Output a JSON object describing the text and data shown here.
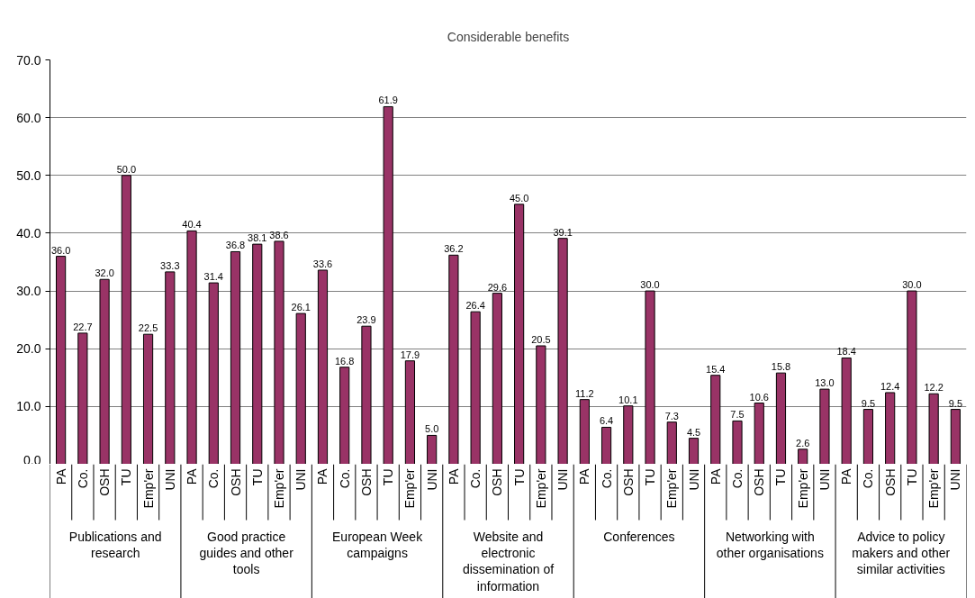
{
  "chart_data": {
    "type": "bar",
    "title": "Considerable benefits",
    "categories": [
      "Publications and research",
      "Good practice guides and other tools",
      "European Week campaigns",
      "Website and electronic dissemination of information",
      "Conferences",
      "Networking with other organisations",
      "Advice to policy makers and other similar activities"
    ],
    "series": [
      {
        "name": "PA",
        "color": "#993366",
        "values": [
          36.0,
          40.4,
          33.6,
          36.2,
          11.2,
          15.4,
          18.4
        ],
        "value_labels": [
          "36.0",
          "40.4",
          "33.6",
          "36.2",
          "11.2",
          "15.4",
          "18.4"
        ]
      },
      {
        "name": "Co.",
        "color": "#993366",
        "values": [
          22.7,
          31.4,
          16.8,
          26.4,
          6.4,
          7.5,
          9.5
        ],
        "value_labels": [
          "22.7",
          "31.4",
          "16.8",
          "26.4",
          "6.4",
          "7.5",
          "9.5"
        ]
      },
      {
        "name": "OSH",
        "color": "#993366",
        "values": [
          32.0,
          36.8,
          23.9,
          29.6,
          10.1,
          10.6,
          12.4
        ],
        "value_labels": [
          "32.0",
          "36.8",
          "23.9",
          "29.6",
          "10.1",
          "10.6",
          "12.4"
        ]
      },
      {
        "name": "TU",
        "color": "#993366",
        "values": [
          50.0,
          38.1,
          61.9,
          45.0,
          30.0,
          15.8,
          30.0
        ],
        "value_labels": [
          "50.0",
          "38.1",
          "61.9",
          "45.0",
          "30.0",
          "15.8",
          "30.0"
        ]
      },
      {
        "name": "Emp'er",
        "color": "#993366",
        "values": [
          22.5,
          38.6,
          17.9,
          20.5,
          7.3,
          2.6,
          12.2
        ],
        "value_labels": [
          "22.5",
          "38.6",
          "17.9",
          "20.5",
          "7.3",
          "2.6",
          "12.2"
        ]
      },
      {
        "name": "UNI",
        "color": "#993366",
        "values": [
          33.3,
          26.1,
          5.0,
          39.1,
          4.5,
          13.0,
          9.5
        ],
        "value_labels": [
          "33.3",
          "26.1",
          "5.0",
          "39.1",
          "4.5",
          "13.0",
          "9.5"
        ]
      }
    ],
    "ylim": [
      0,
      70
    ],
    "yticks": [
      {
        "value": 0,
        "label": "0.0"
      },
      {
        "value": 10,
        "label": "10.0"
      },
      {
        "value": 20,
        "label": "20.0"
      },
      {
        "value": 30,
        "label": "30.0"
      },
      {
        "value": 40,
        "label": "40.0"
      },
      {
        "value": 50,
        "label": "50.0"
      },
      {
        "value": 60,
        "label": "60.0"
      },
      {
        "value": 70,
        "label": "70.0"
      }
    ],
    "grid": "y"
  }
}
